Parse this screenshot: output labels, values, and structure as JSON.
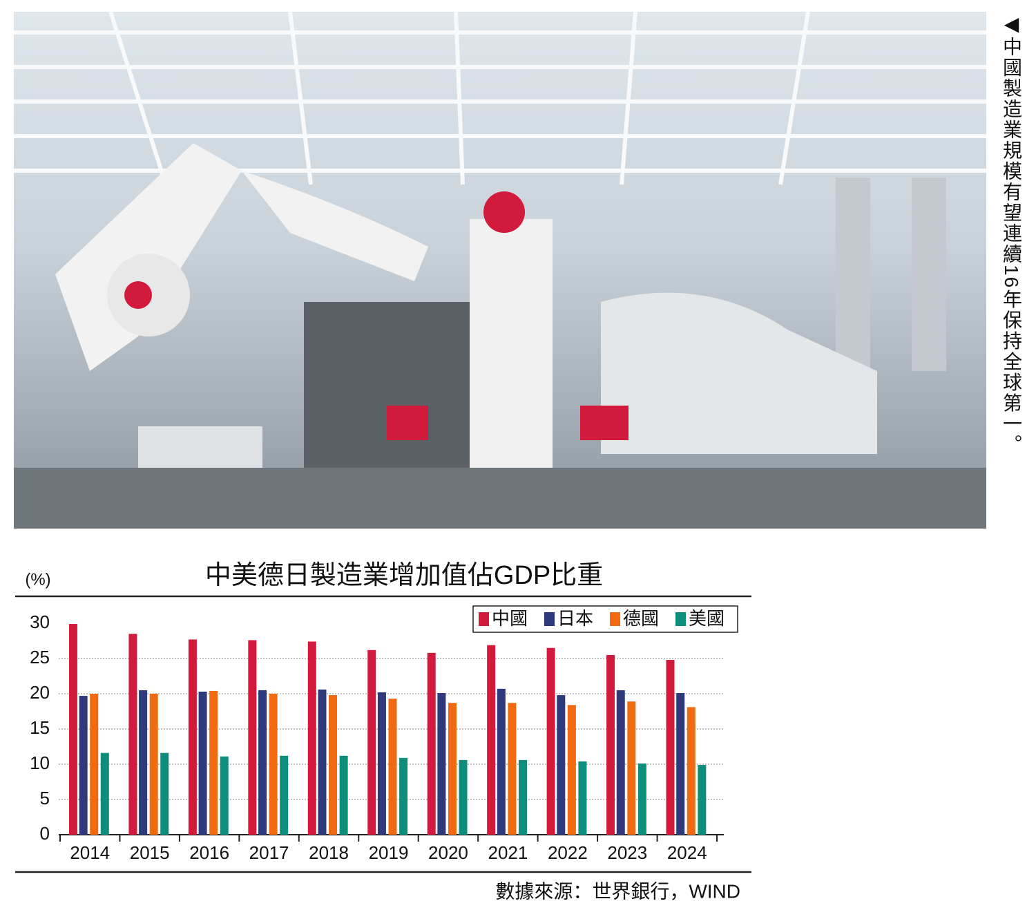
{
  "caption": "◀中國製造業規模有望連續16年保持全球第一。",
  "chart_data": {
    "type": "bar",
    "title": "中美德日製造業增加值佔GDP比重",
    "y_label": "(%)",
    "source": "數據來源：世界銀行，WIND",
    "categories": [
      "2014",
      "2015",
      "2016",
      "2017",
      "2018",
      "2019",
      "2020",
      "2021",
      "2022",
      "2023",
      "2024"
    ],
    "series": [
      {
        "name": "中國",
        "color": "#d11a3c",
        "values": [
          29.9,
          28.5,
          27.7,
          27.6,
          27.4,
          26.2,
          25.8,
          26.9,
          26.5,
          25.5,
          24.8
        ]
      },
      {
        "name": "日本",
        "color": "#2e3a7c",
        "values": [
          19.7,
          20.5,
          20.3,
          20.5,
          20.6,
          20.2,
          20.1,
          20.7,
          19.8,
          20.5,
          20.1
        ]
      },
      {
        "name": "德國",
        "color": "#ef6a10",
        "values": [
          20.0,
          20.0,
          20.4,
          20.0,
          19.8,
          19.3,
          18.7,
          18.7,
          18.4,
          18.9,
          18.1
        ]
      },
      {
        "name": "美國",
        "color": "#0e8c7c",
        "values": [
          11.6,
          11.6,
          11.1,
          11.2,
          11.2,
          10.9,
          10.6,
          10.6,
          10.4,
          10.1,
          9.9
        ]
      }
    ],
    "ylim": [
      0,
      30
    ],
    "yticks": [
      0,
      5,
      10,
      15,
      20,
      25,
      30
    ],
    "grid": true,
    "legend": "top-right"
  }
}
